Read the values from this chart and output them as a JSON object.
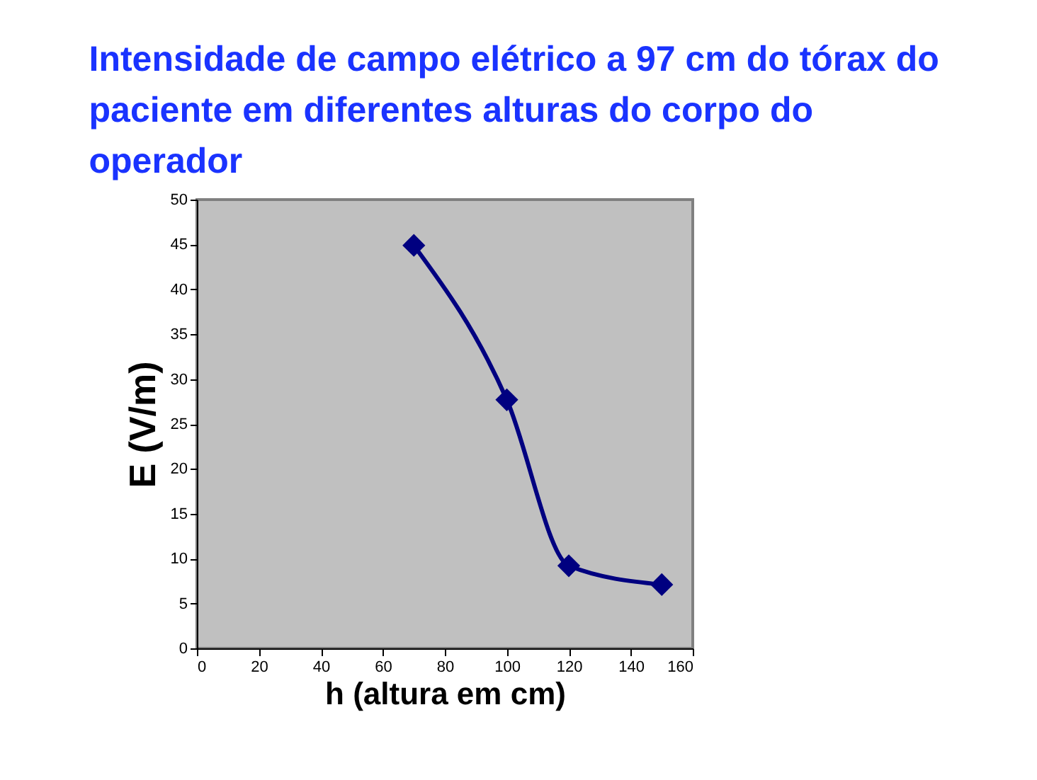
{
  "chart_data": {
    "type": "line",
    "title": "Intensidade de campo elétrico a 97 cm do tórax do paciente em diferentes alturas do corpo do operador",
    "xlabel": "h (altura em cm)",
    "ylabel": "E (V/m)",
    "x": [
      70,
      100,
      120,
      150
    ],
    "series": [
      {
        "color": "#000080",
        "values": [
          44.9,
          27.7,
          9.2,
          7.1
        ]
      }
    ],
    "xlim": [
      0,
      160
    ],
    "xticks": [
      0,
      20,
      40,
      60,
      80,
      100,
      120,
      140,
      160
    ],
    "ylim": [
      0,
      50
    ],
    "yticks": [
      0,
      5,
      10,
      15,
      20,
      25,
      30,
      35,
      40,
      45,
      50
    ],
    "marker": "diamond",
    "line_style": "solid",
    "grid": false,
    "legend": false
  }
}
